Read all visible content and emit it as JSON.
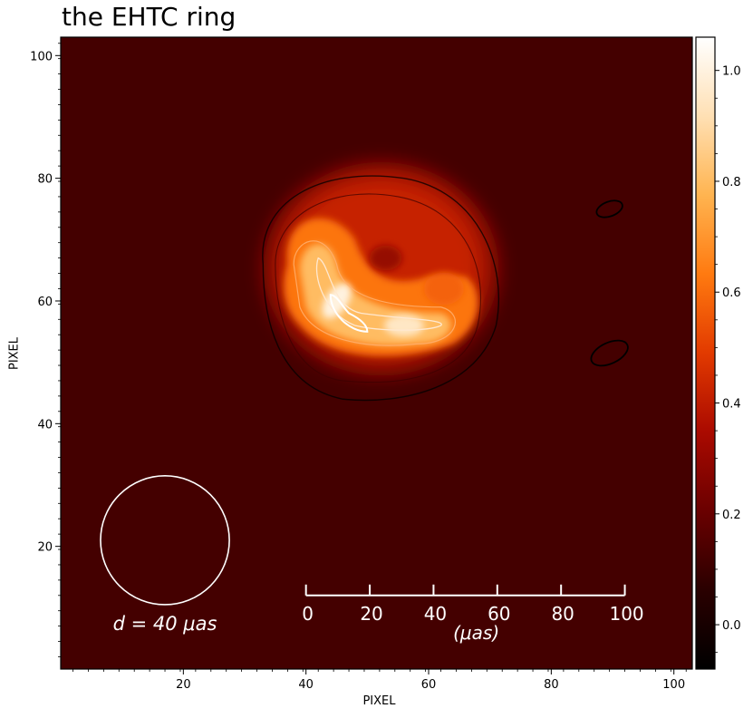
{
  "chart_data": {
    "type": "heatmap",
    "title": "the EHTC ring",
    "xlabel": "PIXEL",
    "ylabel": "PIXEL",
    "xlim": [
      0,
      103
    ],
    "ylim": [
      0,
      103
    ],
    "x_ticks": [
      20,
      40,
      60,
      80,
      100
    ],
    "y_ticks": [
      20,
      40,
      60,
      80,
      100
    ],
    "colorbar": {
      "min": -0.08,
      "max": 1.06,
      "ticks": [
        0.0,
        0.2,
        0.4,
        0.6,
        0.8,
        1.0
      ],
      "tick_labels": [
        "0.0",
        "0.2",
        "0.4",
        "0.6",
        "0.8",
        "1.0"
      ],
      "colormap": "gist_heat",
      "colors": [
        "#000000",
        "#2a0000",
        "#6a0000",
        "#aa0a00",
        "#e23a00",
        "#ff7a10",
        "#ffb450",
        "#ffe0b4",
        "#ffffff"
      ]
    },
    "ring": {
      "center_x": 53,
      "center_y": 67,
      "description_peaks": [
        {
          "x": 45,
          "y": 60,
          "value": 1.0
        },
        {
          "x": 56,
          "y": 56,
          "value": 0.95
        }
      ],
      "background_level": 0.12
    },
    "beam_circle": {
      "center_x": 17,
      "center_y": 21,
      "radius_px": 10.5,
      "label": "d = 40 μas"
    },
    "scale_bar": {
      "x_start": 40,
      "x_end": 92,
      "y": 12,
      "tick_labels": [
        "0",
        "20",
        "40",
        "60",
        "80",
        "100"
      ],
      "unit_label": "(μas)"
    },
    "minor_islands": [
      {
        "x": 89.5,
        "y": 75,
        "rx": 2.2,
        "ry": 1.2,
        "angle": -20
      },
      {
        "x": 89.5,
        "y": 51.5,
        "rx": 3.2,
        "ry": 1.7,
        "angle": -25
      }
    ]
  }
}
